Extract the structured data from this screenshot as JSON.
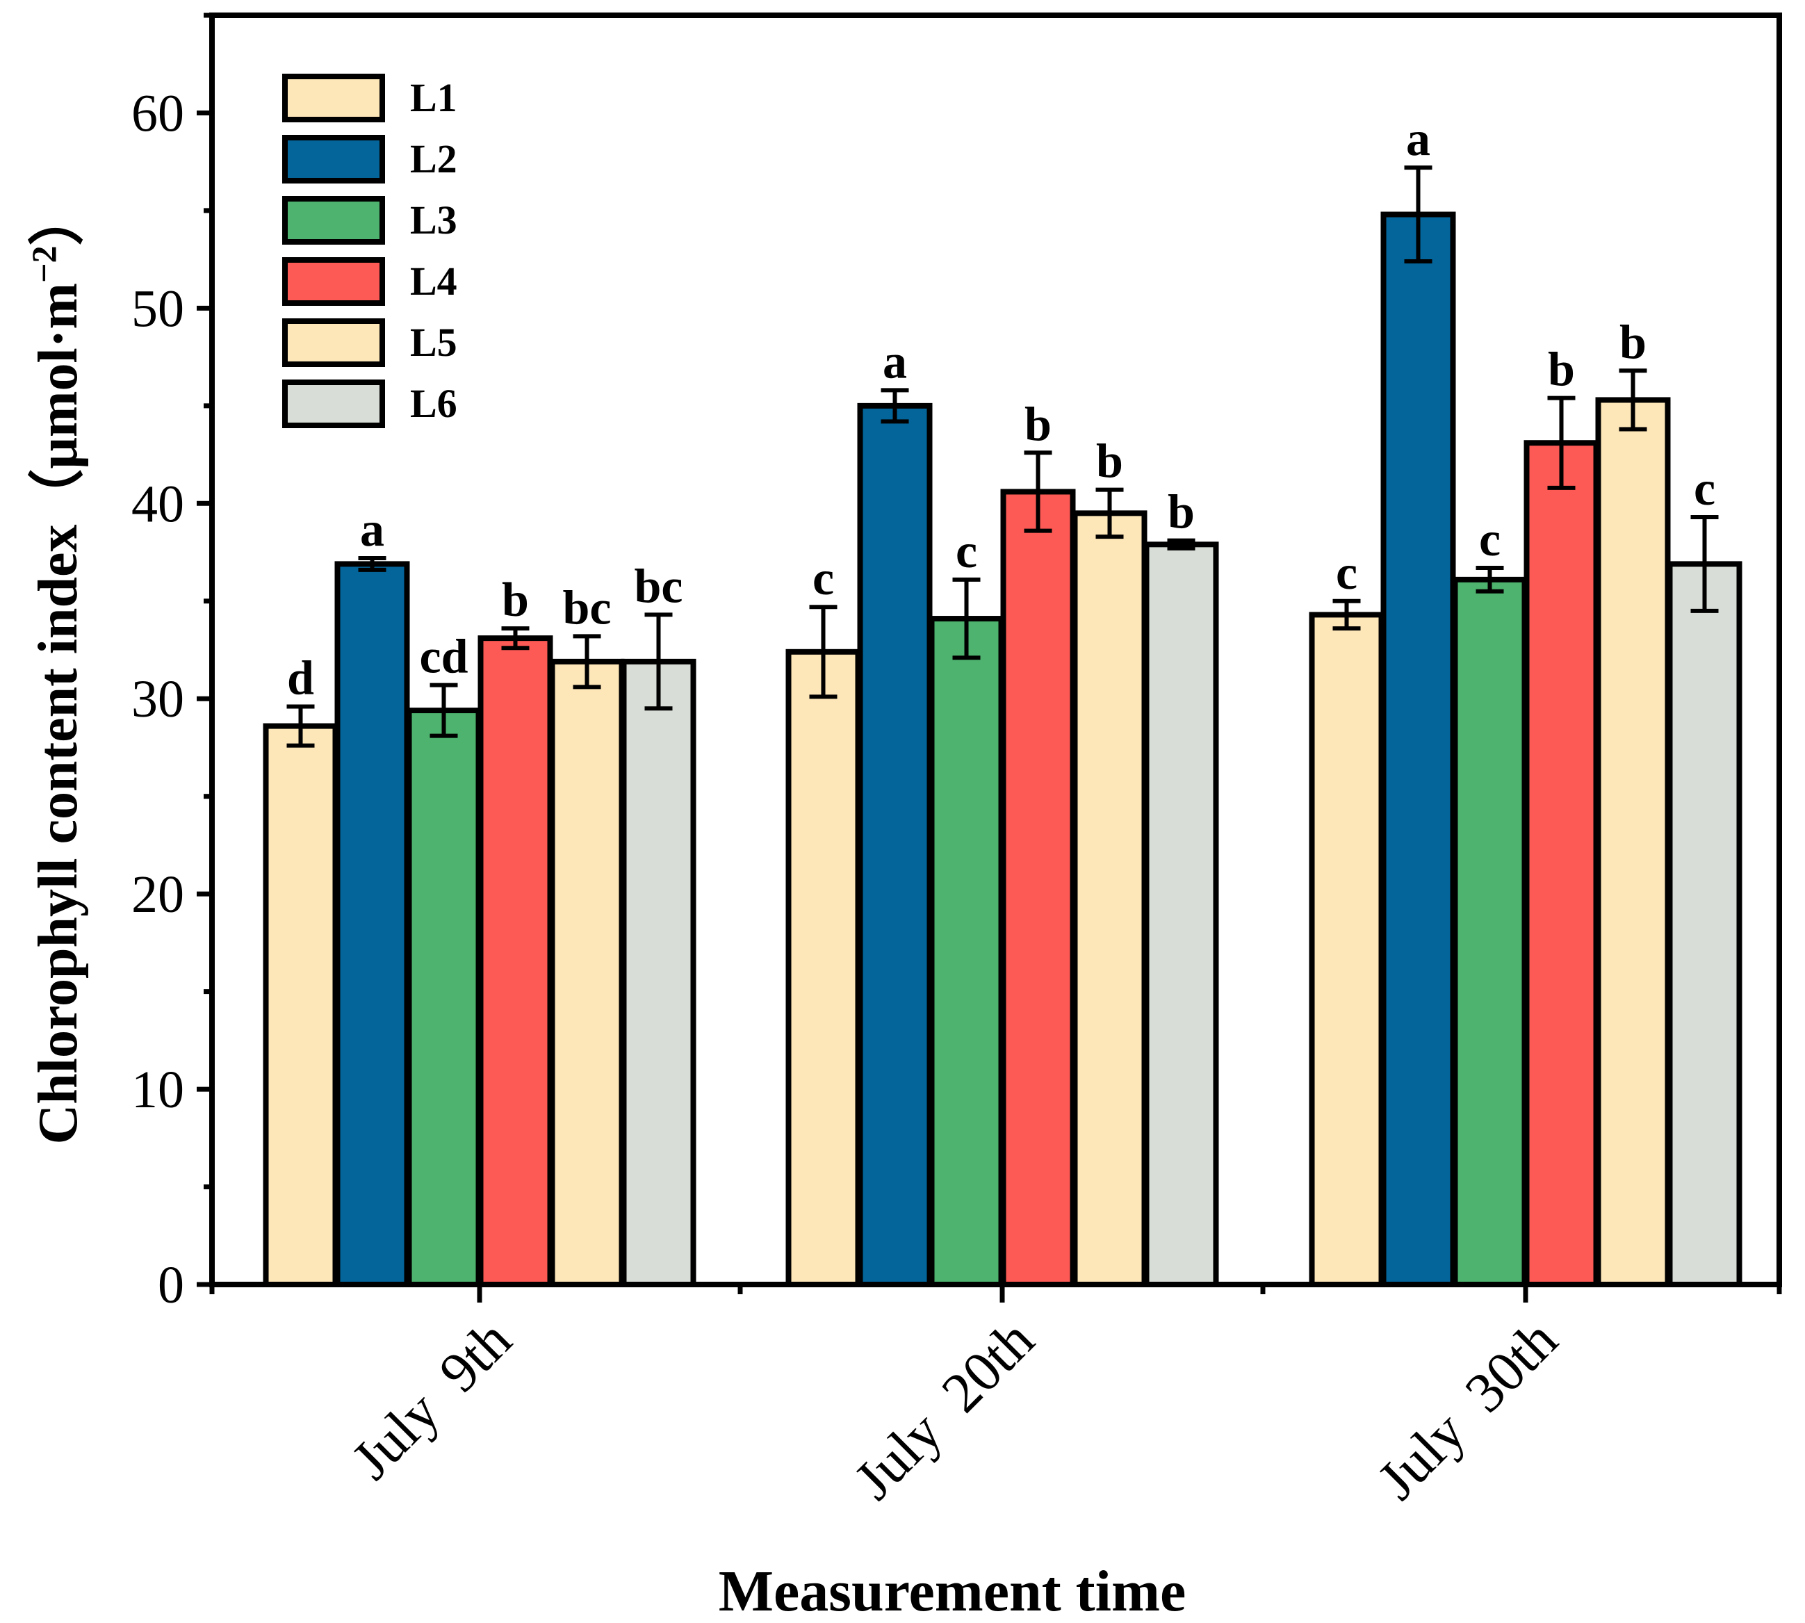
{
  "chart_data": {
    "type": "bar",
    "xlabel": "Measurement time",
    "ylabel": "Chlorophyll content index（μmol·m",
    "ylabel_sup": "−2",
    "ylabel_close": "）",
    "ylim": [
      0,
      65
    ],
    "yticks": [
      0,
      10,
      20,
      30,
      40,
      50,
      60
    ],
    "categories": [
      "July  9th",
      "July  20th",
      "July  30th"
    ],
    "series": [
      {
        "name": "L1",
        "color": "#FDE6B8",
        "values": [
          28.6,
          32.4,
          34.3
        ],
        "errors": [
          1.0,
          2.3,
          0.7
        ],
        "letters": [
          "d",
          "c",
          "c"
        ]
      },
      {
        "name": "L2",
        "color": "#04659A",
        "values": [
          36.9,
          45.0,
          54.8
        ],
        "errors": [
          0.3,
          0.8,
          2.4
        ],
        "letters": [
          "a",
          "a",
          "a"
        ]
      },
      {
        "name": "L3",
        "color": "#4DB36E",
        "values": [
          29.4,
          34.1,
          36.1
        ],
        "errors": [
          1.3,
          2.0,
          0.6
        ],
        "letters": [
          "cd",
          "c",
          "c"
        ]
      },
      {
        "name": "L4",
        "color": "#FE5A55",
        "values": [
          33.1,
          40.6,
          43.1
        ],
        "errors": [
          0.5,
          2.0,
          2.3
        ],
        "letters": [
          "b",
          "b",
          "b"
        ]
      },
      {
        "name": "L5",
        "color": "#FDE6B8",
        "values": [
          31.9,
          39.5,
          45.3
        ],
        "errors": [
          1.3,
          1.2,
          1.5
        ],
        "letters": [
          "bc",
          "b",
          "b"
        ]
      },
      {
        "name": "L6",
        "color": "#D8DED7",
        "values": [
          31.9,
          37.9,
          36.9
        ],
        "errors": [
          2.4,
          0.2,
          2.4
        ],
        "letters": [
          "bc",
          "b",
          "c"
        ]
      }
    ]
  }
}
